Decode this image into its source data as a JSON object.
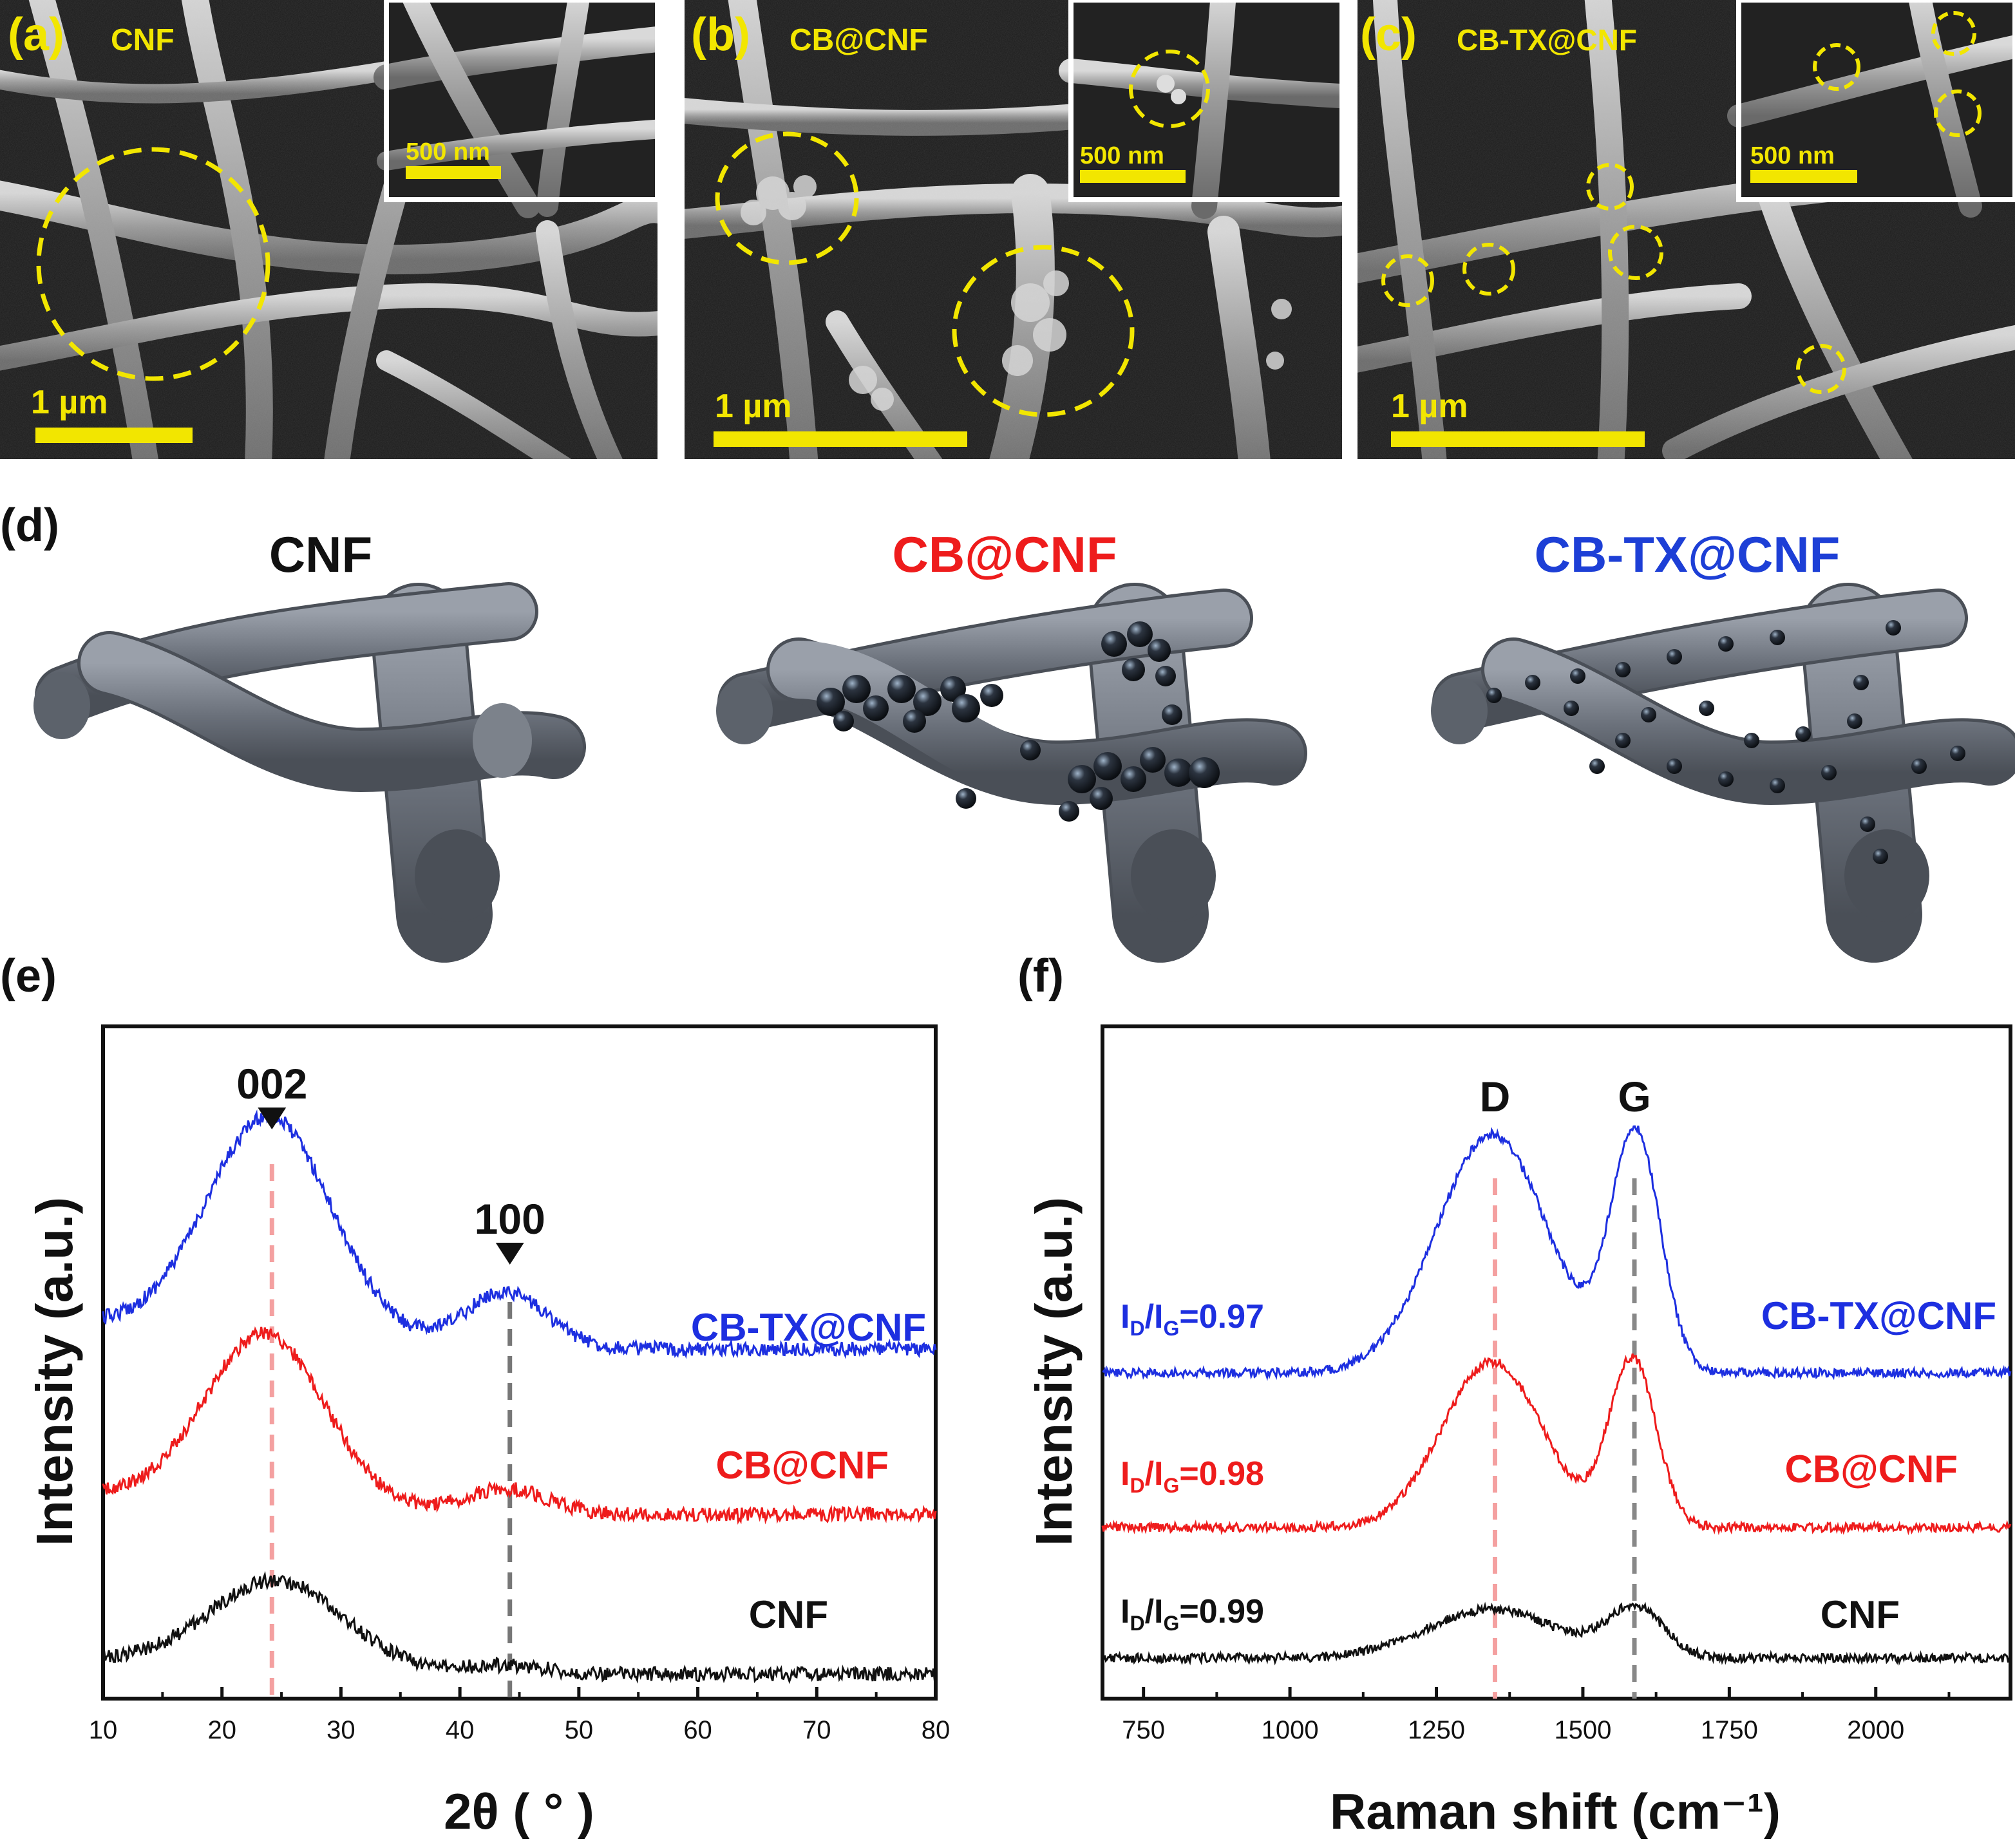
{
  "sem": {
    "panels": [
      {
        "letter": "(a)",
        "label": "CNF",
        "scale_main": "1 µm",
        "scale_inset": "500 nm"
      },
      {
        "letter": "(b)",
        "label": "CB@CNF",
        "scale_main": "1 µm",
        "scale_inset": "500 nm"
      },
      {
        "letter": "(c)",
        "label": "CB-TX@CNF",
        "scale_main": "1 µm",
        "scale_inset": "500 nm"
      }
    ],
    "highlight_color": "#f2e600"
  },
  "schematic": {
    "letter": "(d)",
    "titles": [
      {
        "text": "CNF",
        "color": "#111111"
      },
      {
        "text": "CB@CNF",
        "color": "#ee1c1c"
      },
      {
        "text": "CB-TX@CNF",
        "color": "#1d3fd6"
      }
    ]
  },
  "chart_data": [
    {
      "type": "line",
      "panel": "(e)",
      "xlabel": "2θ ( ° )",
      "ylabel": "Intensity (a.u.)",
      "xlim": [
        10,
        80
      ],
      "xticks": [
        "10",
        "20",
        "30",
        "40",
        "50",
        "60",
        "70",
        "80"
      ],
      "yticks": [],
      "peak_markers": [
        {
          "label": "002",
          "x": 24.2,
          "color": "#f4a0a0"
        },
        {
          "label": "100",
          "x": 44.2,
          "color": "#777777"
        }
      ],
      "series": [
        {
          "name": "CB-TX@CNF",
          "color": "#1d2fe0",
          "baseline": 0.0,
          "peaks": [
            {
              "center": 24.0,
              "height": 1.0,
              "width": 5.2
            },
            {
              "center": 43.8,
              "height": 0.26,
              "width": 3.5
            }
          ]
        },
        {
          "name": "CB@CNF",
          "color": "#ee1c1c",
          "baseline": 0.0,
          "peaks": [
            {
              "center": 23.6,
              "height": 0.85,
              "width": 5.0
            },
            {
              "center": 43.8,
              "height": 0.13,
              "width": 3.5
            }
          ]
        },
        {
          "name": "CNF",
          "color": "#111111",
          "baseline": 0.0,
          "peaks": [
            {
              "center": 24.6,
              "height": 0.58,
              "width": 5.6
            },
            {
              "center": 43.8,
              "height": 0.06,
              "width": 3.5
            }
          ]
        }
      ]
    },
    {
      "type": "line",
      "panel": "(f)",
      "xlabel": "Raman shift (cm⁻¹)",
      "ylabel": "Intensity (a.u.)",
      "xlim": [
        680,
        2230
      ],
      "xticks": [
        "750",
        "1000",
        "1250",
        "1500",
        "1750",
        "2000"
      ],
      "yticks": [],
      "peak_markers": [
        {
          "label": "D",
          "x": 1350,
          "color": "#f4a0a0"
        },
        {
          "label": "G",
          "x": 1588,
          "color": "#888888"
        }
      ],
      "series": [
        {
          "name": "CB-TX@CNF",
          "ratio_label": "0.97",
          "color": "#1d2fe0",
          "peaks": [
            {
              "center": 1345,
              "height": 1.0,
              "width": 95
            },
            {
              "center": 1590,
              "height": 1.0,
              "width": 42
            }
          ]
        },
        {
          "name": "CB@CNF",
          "ratio_label": "0.98",
          "color": "#ee1c1c",
          "peaks": [
            {
              "center": 1345,
              "height": 0.78,
              "width": 85
            },
            {
              "center": 1585,
              "height": 0.79,
              "width": 40
            }
          ]
        },
        {
          "name": "CNF",
          "ratio_label": "0.99",
          "color": "#111111",
          "peaks": [
            {
              "center": 1345,
              "height": 0.36,
              "width": 110
            },
            {
              "center": 1590,
              "height": 0.36,
              "width": 48
            }
          ]
        }
      ],
      "ratio_prefix": "I",
      "ratio_sub_d": "D",
      "ratio_sub_g": "G"
    }
  ]
}
